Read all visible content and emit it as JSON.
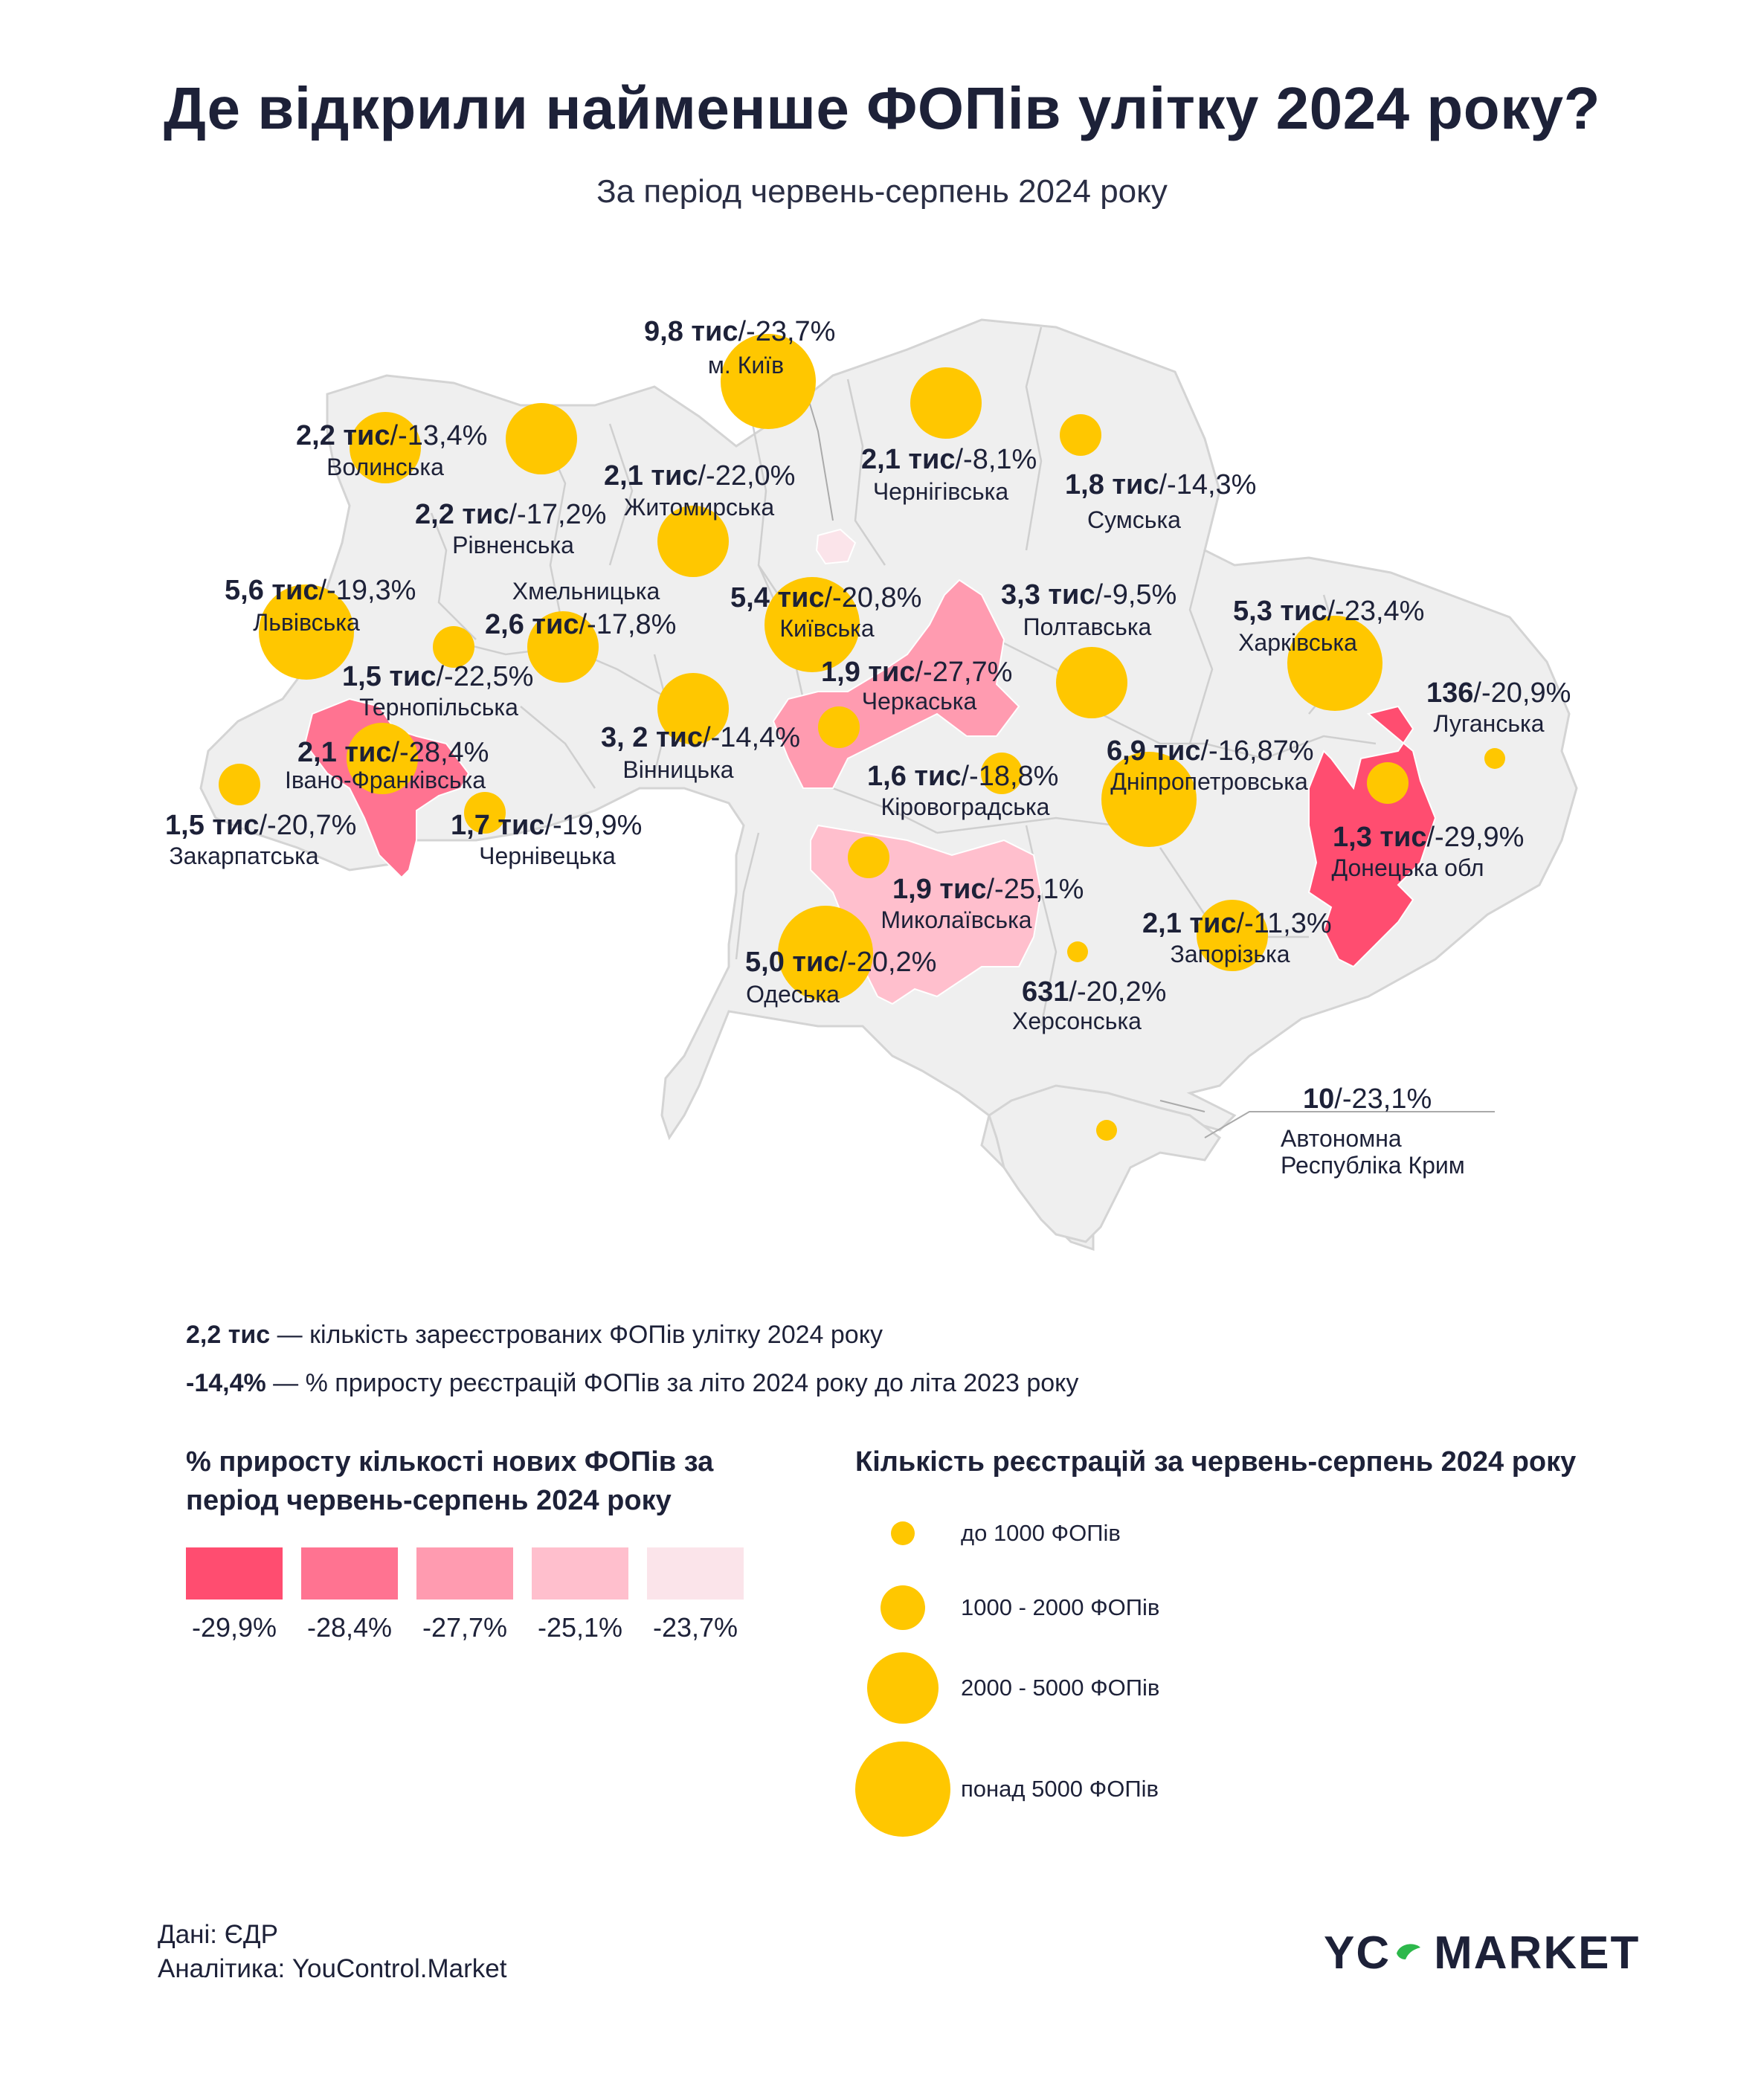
{
  "title": "Де відкрили найменше ФОПів улітку 2024 року?",
  "subtitle": "За період червень-серпень 2024 року",
  "colors": {
    "land": "#efefef",
    "border": "#c9c9c9",
    "bubble": "#ffc700",
    "shade_1": "#ff4d70",
    "shade_2": "#ff7391",
    "shade_3": "#ff9bb0",
    "shade_4": "#ffbfcd",
    "shade_5": "#fbe4ea"
  },
  "regions": [
    {
      "name": "м. Київ",
      "count": "9,8 тис",
      "pct": "/-23,7%",
      "count_value": 9800,
      "pct_value": -23.7,
      "size_class": 4
    },
    {
      "name": "Волинська",
      "count": "2,2 тис",
      "pct": "/-13,4%",
      "count_value": 2200,
      "pct_value": -13.4,
      "size_class": 3
    },
    {
      "name": "Житомирська",
      "count": "2,1 тис",
      "pct": "/-22,0%",
      "count_value": 2100,
      "pct_value": -22.0,
      "size_class": 3
    },
    {
      "name": "Чернігівська",
      "count": "2,1 тис",
      "pct": "/-8,1%",
      "count_value": 2100,
      "pct_value": -8.1,
      "size_class": 3
    },
    {
      "name": "Сумська",
      "count": "1,8 тис",
      "pct": "/-14,3%",
      "count_value": 1800,
      "pct_value": -14.3,
      "size_class": 2
    },
    {
      "name": "Рівненська",
      "count": "2,2 тис",
      "pct": "/-17,2%",
      "count_value": 2200,
      "pct_value": -17.2,
      "size_class": 3
    },
    {
      "name": "Львівська",
      "count": "5,6 тис",
      "pct": "/-19,3%",
      "count_value": 5600,
      "pct_value": -19.3,
      "size_class": 4
    },
    {
      "name": "Хмельницька",
      "count": "2,6 тис",
      "pct": "/-17,8%",
      "count_value": 2600,
      "pct_value": -17.8,
      "size_class": 3
    },
    {
      "name": "Київська",
      "count": "5,4 тис",
      "pct": "/-20,8%",
      "count_value": 5400,
      "pct_value": -20.8,
      "size_class": 4
    },
    {
      "name": "Полтавська",
      "count": "3,3 тис",
      "pct": "/-9,5%",
      "count_value": 3300,
      "pct_value": -9.5,
      "size_class": 3
    },
    {
      "name": "Харківська",
      "count": "5,3 тис",
      "pct": "/-23,4%",
      "count_value": 5300,
      "pct_value": -23.4,
      "size_class": 4
    },
    {
      "name": "Тернопільська",
      "count": "1,5 тис",
      "pct": "/-22,5%",
      "count_value": 1500,
      "pct_value": -22.5,
      "size_class": 2
    },
    {
      "name": "Черкаська",
      "count": "1,9 тис",
      "pct": "/-27,7%",
      "count_value": 1900,
      "pct_value": -27.7,
      "size_class": 2
    },
    {
      "name": "Луганська",
      "count": "136",
      "pct": "/-20,9%",
      "count_value": 136,
      "pct_value": -20.9,
      "size_class": 1
    },
    {
      "name": "Івано-Франківська",
      "count": "2,1 тис",
      "pct": "/-28,4%",
      "count_value": 2100,
      "pct_value": -28.4,
      "size_class": 3
    },
    {
      "name": "Вінницька",
      "count": "3, 2 тис",
      "pct": "/-14,4%",
      "count_value": 3200,
      "pct_value": -14.4,
      "size_class": 3
    },
    {
      "name": "Кіровоградська",
      "count": "1,6 тис",
      "pct": "/-18,8%",
      "count_value": 1600,
      "pct_value": -18.8,
      "size_class": 2
    },
    {
      "name": "Дніпропетровська",
      "count": "6,9 тис",
      "pct": "/-16,87%",
      "count_value": 6900,
      "pct_value": -16.87,
      "size_class": 4
    },
    {
      "name": "Закарпатська",
      "count": "1,5 тис",
      "pct": "/-20,7%",
      "count_value": 1500,
      "pct_value": -20.7,
      "size_class": 2
    },
    {
      "name": "Чернівецька",
      "count": "1,7 тис",
      "pct": "/-19,9%",
      "count_value": 1700,
      "pct_value": -19.9,
      "size_class": 2
    },
    {
      "name": "Донецька обл",
      "count": "1,3 тис",
      "pct": "/-29,9%",
      "count_value": 1300,
      "pct_value": -29.9,
      "size_class": 2
    },
    {
      "name": "Миколаївська",
      "count": "1,9 тис",
      "pct": "/-25,1%",
      "count_value": 1900,
      "pct_value": -25.1,
      "size_class": 2
    },
    {
      "name": "Запорізька",
      "count": "2,1 тис",
      "pct": "/-11,3%",
      "count_value": 2100,
      "pct_value": -11.3,
      "size_class": 3
    },
    {
      "name": "Одеська",
      "count": "5,0 тис",
      "pct": "/-20,2%",
      "count_value": 5000,
      "pct_value": -20.2,
      "size_class": 4
    },
    {
      "name": "Херсонська",
      "count": "631",
      "pct": "/-20,2%",
      "count_value": 631,
      "pct_value": -20.2,
      "size_class": 1
    },
    {
      "name": "Автономна Республіка Крим",
      "name_line1": "Автономна",
      "name_line2": "Республіка Крим",
      "count": "10",
      "pct": "/-23,1%",
      "count_value": 10,
      "pct_value": -23.1,
      "size_class": 1
    }
  ],
  "explain": {
    "count_sample": "2,2 тис",
    "count_text": " — кількість зареєстрованих ФОПів улітку 2024 року",
    "pct_sample": "-14,4%",
    "pct_text": " —  % приросту реєстрацій ФОПів за літо 2024 року до літа 2023 року"
  },
  "legend_color": {
    "title_line1": "% приросту кількості нових ФОПів за",
    "title_line2": "період червень-серпень 2024 року",
    "items": [
      {
        "label": "-29,9%",
        "color": "#ff4d70"
      },
      {
        "label": "-28,4%",
        "color": "#ff7391"
      },
      {
        "label": "-27,7%",
        "color": "#ff9bb0"
      },
      {
        "label": "-25,1%",
        "color": "#ffbfcd"
      },
      {
        "label": "-23,7%",
        "color": "#fbe4ea"
      }
    ]
  },
  "legend_size": {
    "title": "Кількість реєстрацій за червень-серпень 2024 року",
    "items": [
      "до 1000 ФОПів",
      "1000 - 2000 ФОПів",
      "2000 - 5000 ФОПів",
      "понад 5000 ФОПів"
    ]
  },
  "source": {
    "data": "Дані: ЄДР",
    "analytics": "Аналітика: YouControl.Market"
  },
  "brand": {
    "left": "YC",
    "right": "MARKET"
  }
}
